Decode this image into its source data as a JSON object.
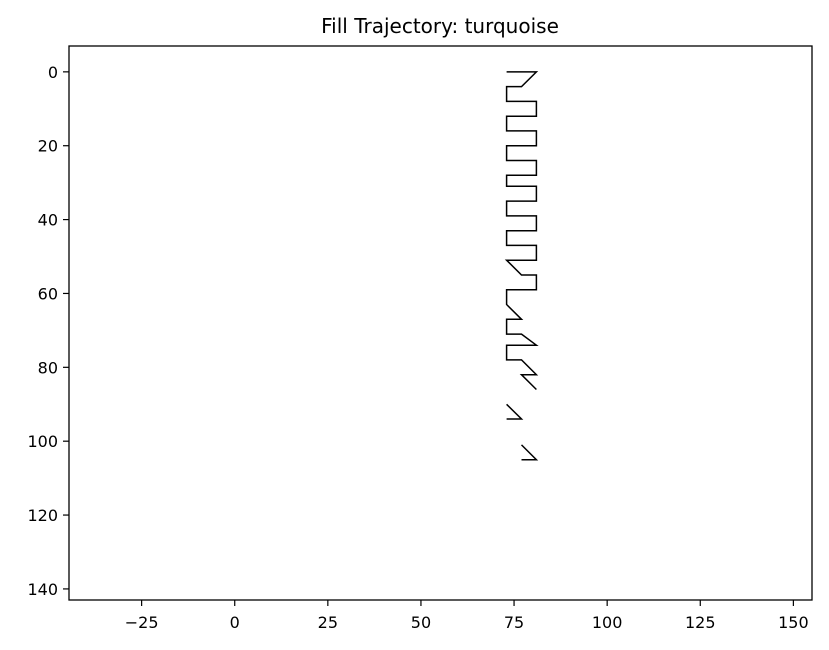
{
  "chart_data": {
    "type": "line",
    "title": "Fill Trajectory: turquoise",
    "xlabel": "",
    "ylabel": "",
    "xlim": [
      -44.5,
      155
    ],
    "ylim": [
      143,
      -7
    ],
    "y_inverted": true,
    "grid": false,
    "x_ticks": [
      -25,
      0,
      25,
      50,
      75,
      100,
      125,
      150
    ],
    "x_tick_labels": [
      "−25",
      "0",
      "25",
      "50",
      "75",
      "100",
      "125",
      "150"
    ],
    "y_ticks": [
      0,
      20,
      40,
      60,
      80,
      100,
      120,
      140
    ],
    "y_tick_labels": [
      "0",
      "20",
      "40",
      "60",
      "80",
      "100",
      "120",
      "140"
    ],
    "line_color": "#000000",
    "segments": [
      {
        "x": [
          73,
          81,
          77,
          73,
          73,
          81,
          81,
          73,
          73,
          81,
          81,
          73,
          73,
          81,
          81,
          73,
          73,
          81,
          81,
          73,
          73,
          81,
          81,
          73,
          73,
          81,
          81,
          73,
          73,
          77,
          81,
          81,
          73,
          73,
          77,
          73,
          73,
          77,
          81,
          73,
          73,
          77,
          81,
          77,
          81
        ],
        "y": [
          0,
          0,
          4,
          4,
          8,
          8,
          12,
          12,
          16,
          16,
          20,
          20,
          24,
          24,
          28,
          28,
          31,
          31,
          35,
          35,
          39,
          39,
          43,
          43,
          47,
          47,
          51,
          51,
          51,
          55,
          55,
          59,
          59,
          63,
          67,
          67,
          71,
          71,
          74,
          74,
          78,
          78,
          82,
          82,
          86
        ]
      },
      {
        "x": [
          73,
          77,
          73
        ],
        "y": [
          90,
          94,
          94
        ]
      },
      {
        "x": [
          77,
          81,
          77
        ],
        "y": [
          101,
          105,
          105
        ]
      }
    ]
  }
}
